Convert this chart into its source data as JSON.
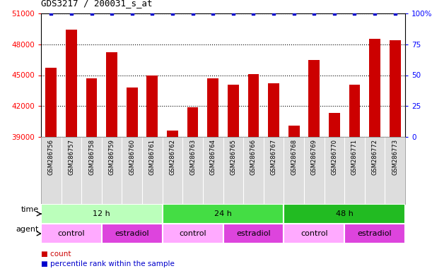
{
  "title": "GDS3217 / 200031_s_at",
  "samples": [
    "GSM286756",
    "GSM286757",
    "GSM286758",
    "GSM286759",
    "GSM286760",
    "GSM286761",
    "GSM286762",
    "GSM286763",
    "GSM286764",
    "GSM286765",
    "GSM286766",
    "GSM286767",
    "GSM286768",
    "GSM286769",
    "GSM286770",
    "GSM286771",
    "GSM286772",
    "GSM286773"
  ],
  "counts": [
    45700,
    49400,
    44700,
    47200,
    43800,
    45000,
    39600,
    41900,
    44700,
    44100,
    45100,
    44200,
    40100,
    46500,
    41300,
    44100,
    48500,
    48400
  ],
  "percentile": 100,
  "ylim_left": [
    39000,
    51000
  ],
  "ylim_right": [
    0,
    100
  ],
  "yticks_left": [
    39000,
    42000,
    45000,
    48000,
    51000
  ],
  "yticks_right": [
    0,
    25,
    50,
    75,
    100
  ],
  "bar_color": "#cc0000",
  "dot_color": "#0000cc",
  "bar_width": 0.55,
  "time_groups": [
    {
      "label": "12 h",
      "start": 0,
      "end": 6,
      "color": "#bbffbb"
    },
    {
      "label": "24 h",
      "start": 6,
      "end": 12,
      "color": "#44dd44"
    },
    {
      "label": "48 h",
      "start": 12,
      "end": 18,
      "color": "#22bb22"
    }
  ],
  "agent_groups": [
    {
      "label": "control",
      "start": 0,
      "end": 3,
      "color": "#ffaaff"
    },
    {
      "label": "estradiol",
      "start": 3,
      "end": 6,
      "color": "#dd44dd"
    },
    {
      "label": "control",
      "start": 6,
      "end": 9,
      "color": "#ffaaff"
    },
    {
      "label": "estradiol",
      "start": 9,
      "end": 12,
      "color": "#dd44dd"
    },
    {
      "label": "control",
      "start": 12,
      "end": 15,
      "color": "#ffaaff"
    },
    {
      "label": "estradiol",
      "start": 15,
      "end": 18,
      "color": "#dd44dd"
    }
  ],
  "legend_count_label": "count",
  "legend_pct_label": "percentile rank within the sample",
  "time_label": "time",
  "agent_label": "agent",
  "xlabels_bg": "#dddddd",
  "fig_width": 6.11,
  "fig_height": 3.84,
  "dpi": 100
}
